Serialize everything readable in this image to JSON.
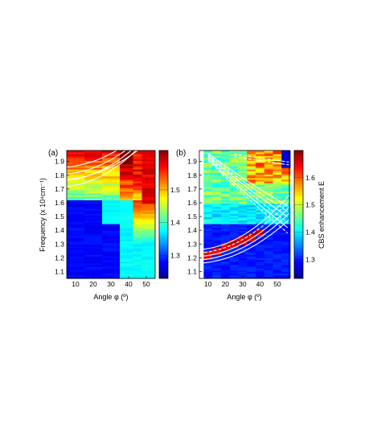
{
  "chart_data": [
    {
      "type": "heatmap",
      "panel_label": "(a)",
      "xlabel": "Angle φ (º)",
      "ylabel": "Frequency (x 10⁴cm⁻¹)",
      "xlim": [
        5,
        55
      ],
      "ylim": [
        1.05,
        1.98
      ],
      "xticks": [
        "10",
        "20",
        "30",
        "40",
        "50"
      ],
      "yticks": [
        "1.1",
        "1.2",
        "1.3",
        "1.4",
        "1.5",
        "1.6",
        "1.7",
        "1.8",
        "1.9"
      ],
      "x_columns": [
        10,
        20,
        30,
        40,
        45,
        50
      ],
      "colorbar": {
        "min": 1.23,
        "max": 1.62,
        "ticks": [
          "1.3",
          "1.4",
          "1.5"
        ]
      },
      "overlay_curves": "white solid lines rising from ~1.72 at 10º to ~1.97 at 50º"
    },
    {
      "type": "heatmap",
      "panel_label": "(b)",
      "xlabel": "Angle φ (º)",
      "ylabel": "",
      "xlim": [
        5,
        57
      ],
      "ylim": [
        1.05,
        1.98
      ],
      "xticks": [
        "10",
        "20",
        "30",
        "40",
        "50"
      ],
      "yticks": [
        "1.1",
        "1.2",
        "1.3",
        "1.4",
        "1.5",
        "1.6",
        "1.7",
        "1.8",
        "1.9"
      ],
      "x_columns": [
        10,
        15,
        20,
        25,
        30,
        35,
        40,
        45,
        50,
        55
      ],
      "colorbar": {
        "label": "CBS enhancement E",
        "min": 1.23,
        "max": 1.7,
        "ticks": [
          "1.3",
          "1.4",
          "1.5",
          "1.6"
        ]
      },
      "overlay_curves": "white solid and dashed lines: descending set from ~1.95 at 12º to ~1.45 at 57º; ascending set from ~1.22 at 12º to ~1.50 at 57º"
    }
  ]
}
